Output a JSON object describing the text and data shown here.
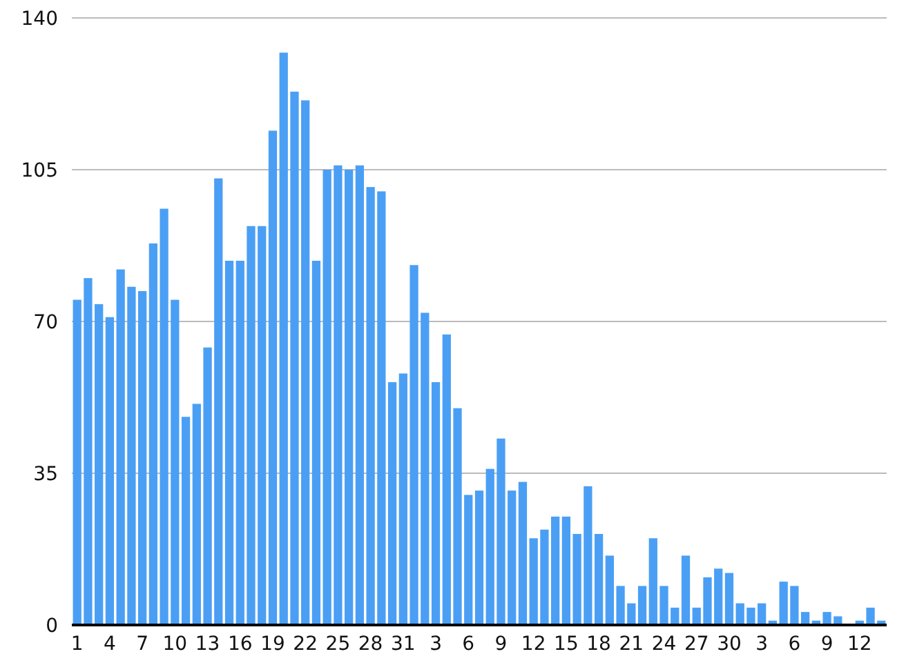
{
  "chart_data": {
    "type": "bar",
    "categories": [
      "1",
      null,
      null,
      "4",
      null,
      null,
      "7",
      null,
      null,
      "10",
      null,
      null,
      "13",
      null,
      null,
      "16",
      null,
      null,
      "19",
      null,
      null,
      "22",
      null,
      null,
      "25",
      null,
      null,
      "28",
      null,
      null,
      "31",
      null,
      null,
      "3",
      null,
      null,
      "6",
      null,
      null,
      "9",
      null,
      null,
      "12",
      null,
      null,
      "15",
      null,
      null,
      "18",
      null,
      null,
      "21",
      null,
      null,
      "24",
      null,
      null,
      "27",
      null,
      null,
      "30",
      null,
      null,
      "3",
      null,
      null,
      "6",
      null,
      null,
      "9",
      null,
      null,
      "12",
      null,
      null
    ],
    "values": [
      75,
      80,
      74,
      71,
      82,
      78,
      77,
      88,
      96,
      75,
      48,
      51,
      64,
      103,
      84,
      84,
      92,
      92,
      114,
      132,
      123,
      121,
      84,
      105,
      106,
      105,
      106,
      101,
      100,
      56,
      58,
      83,
      72,
      56,
      67,
      50,
      30,
      31,
      36,
      43,
      31,
      33,
      20,
      22,
      25,
      25,
      21,
      32,
      21,
      16,
      9,
      5,
      9,
      20,
      9,
      4,
      16,
      4,
      11,
      13,
      12,
      5,
      4,
      5,
      1,
      10,
      9,
      3,
      1,
      3,
      2,
      0,
      1,
      4,
      1
    ],
    "color": "#4a9ff5",
    "ylim": [
      0,
      140
    ],
    "yticks": [
      0,
      35,
      70,
      105,
      140
    ],
    "grid": "y"
  }
}
